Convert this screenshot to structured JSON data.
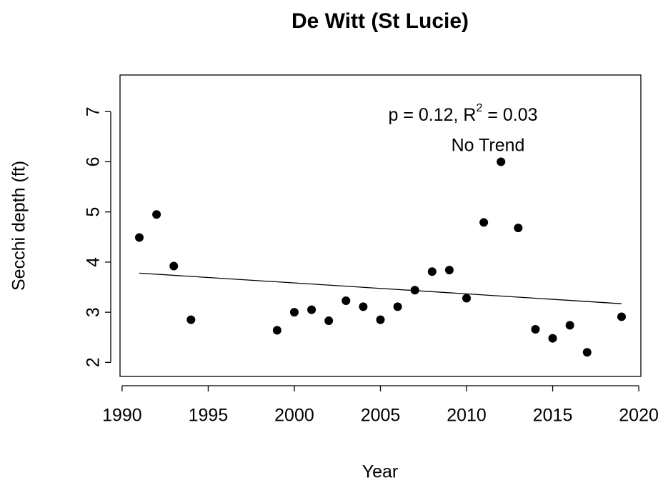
{
  "chart_data": {
    "type": "scatter",
    "title": "De Witt (St Lucie)",
    "x_label": "Year",
    "y_label": "Secchi depth (ft)",
    "x": [
      1991,
      1992,
      1993,
      1994,
      1999,
      2000,
      2001,
      2002,
      2003,
      2004,
      2005,
      2006,
      2007,
      2008,
      2009,
      2010,
      2011,
      2012,
      2013,
      2014,
      2015,
      2016,
      2017,
      2019
    ],
    "values": [
      4.49,
      4.95,
      3.92,
      2.85,
      2.64,
      3.0,
      3.05,
      2.83,
      3.23,
      3.11,
      2.85,
      3.11,
      3.44,
      3.81,
      3.84,
      3.28,
      4.79,
      6.0,
      4.68,
      2.66,
      2.48,
      2.74,
      2.2,
      2.91
    ],
    "color": "#000000",
    "trend": {
      "x": [
        1991,
        2019
      ],
      "values": [
        3.78,
        3.17
      ],
      "color": "#000000"
    },
    "annotation": {
      "before": "p = 0.12, R",
      "sup": "2",
      "after": " = 0.03"
    },
    "trend_label": "No Trend",
    "xlim": [
      1989.88,
      2020.12
    ],
    "xticks": [
      1990,
      1995,
      2000,
      2005,
      2010,
      2015,
      2020
    ],
    "ylim": [
      1.72,
      7.73
    ],
    "yticks": [
      2,
      3,
      4,
      5,
      6,
      7
    ],
    "grid": false
  }
}
